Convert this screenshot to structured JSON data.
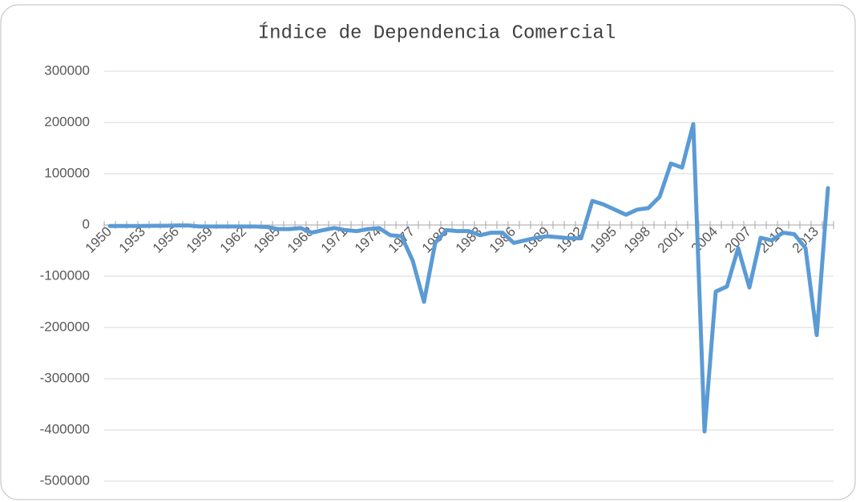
{
  "chart_data": {
    "type": "line",
    "title": "Índice de Dependencia Comercial",
    "categories": [
      "1950",
      null,
      null,
      "1953",
      null,
      null,
      "1956",
      null,
      null,
      "1959",
      null,
      null,
      "1962",
      null,
      null,
      "1965",
      null,
      null,
      "1968",
      null,
      null,
      "1971",
      null,
      null,
      "1974",
      null,
      null,
      "1977",
      null,
      null,
      "1980",
      null,
      null,
      "1983",
      null,
      null,
      "1986",
      null,
      null,
      "1989",
      null,
      null,
      "1992",
      null,
      null,
      "1995",
      null,
      null,
      "1998",
      null,
      null,
      "2001",
      null,
      null,
      "2004",
      null,
      null,
      "2007",
      null,
      null,
      "2010",
      null,
      null,
      "2013",
      null
    ],
    "series": [
      {
        "color": "#5b9bd5",
        "values": [
          -2000,
          -2000,
          -2000,
          -2000,
          -1500,
          -1500,
          -1000,
          -1000,
          -3000,
          -3000,
          -3000,
          -3000,
          -3000,
          -3000,
          -4000,
          -8000,
          -8000,
          -6000,
          -15000,
          -10000,
          -6000,
          -10000,
          -12000,
          -8000,
          -6000,
          -20000,
          -22000,
          -70000,
          -150000,
          -35000,
          -10000,
          -12000,
          -12000,
          -20000,
          -15000,
          -15000,
          -35000,
          -30000,
          -25000,
          -22000,
          -24000,
          -26000,
          -26000,
          47000,
          40000,
          30000,
          20000,
          30000,
          33000,
          55000,
          120000,
          112000,
          197000,
          -403000,
          -130000,
          -120000,
          -45000,
          -122000,
          -25000,
          -30000,
          -15000,
          -18000,
          -45000,
          -215000,
          72000
        ]
      }
    ],
    "ylim": [
      -500000,
      300000
    ],
    "yticks": [
      -500000,
      -400000,
      -300000,
      -200000,
      -100000,
      0,
      100000,
      200000,
      300000
    ],
    "grid": true
  }
}
